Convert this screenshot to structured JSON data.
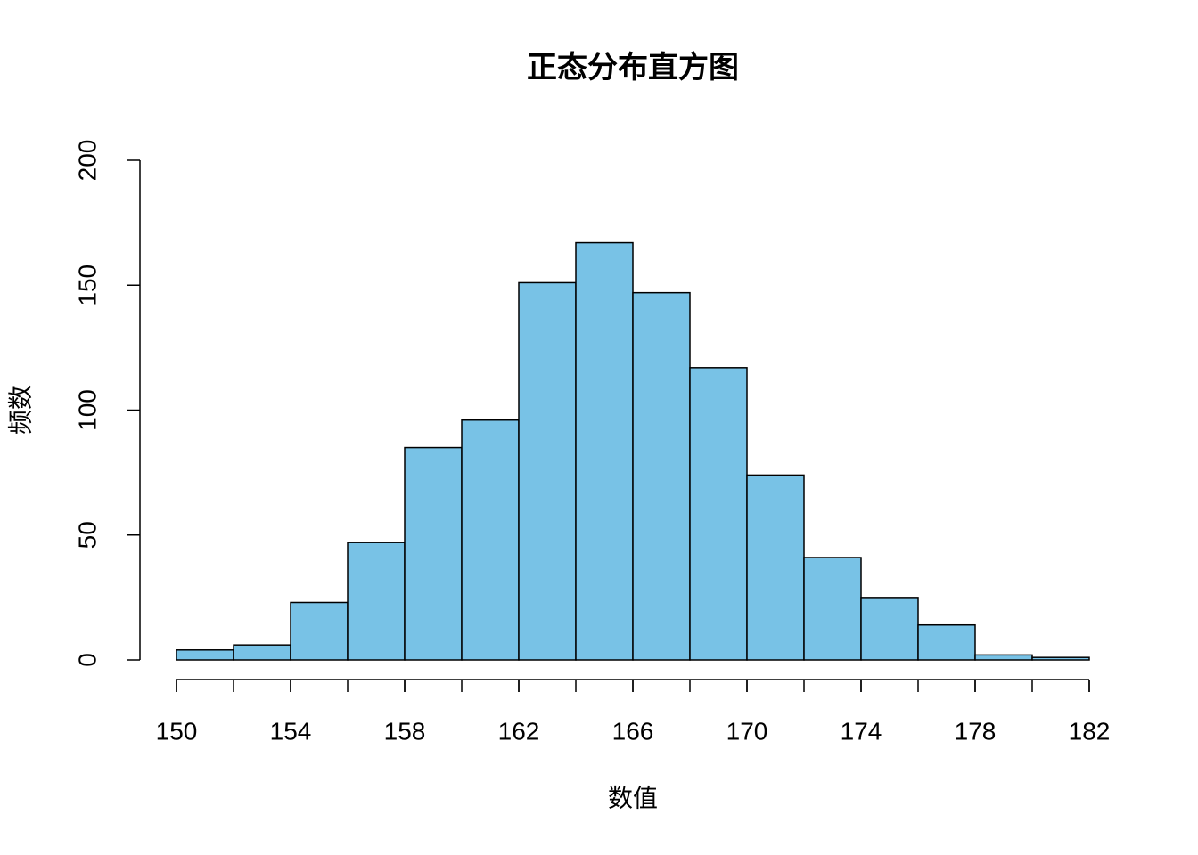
{
  "chart_data": {
    "type": "histogram",
    "title": "正态分布直方图",
    "x_label": "数值",
    "y_label": "频数",
    "bins": [
      150,
      152,
      154,
      156,
      158,
      160,
      162,
      164,
      166,
      168,
      170,
      172,
      174,
      176,
      178,
      180,
      182
    ],
    "values": [
      4,
      6,
      23,
      47,
      85,
      96,
      151,
      167,
      147,
      117,
      74,
      41,
      25,
      14,
      2,
      1
    ],
    "color": "#78c2e6",
    "xlim": [
      150,
      182
    ],
    "xticks": [
      150,
      154,
      158,
      162,
      166,
      170,
      174,
      178,
      182
    ],
    "ylim": [
      0,
      200
    ],
    "yticks": [
      0,
      50,
      100,
      150,
      200
    ]
  }
}
